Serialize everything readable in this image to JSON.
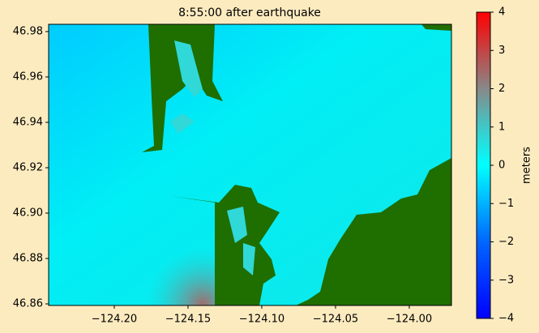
{
  "chart_data": {
    "type": "heatmap",
    "title": "8:55:00 after earthquake",
    "xlim": [
      -124.2445,
      -123.9714
    ],
    "ylim": [
      46.8593,
      46.9832
    ],
    "xticks": [
      {
        "value": -124.2,
        "label": "−124.20"
      },
      {
        "value": -124.15,
        "label": "−124.15"
      },
      {
        "value": -124.1,
        "label": "−124.10"
      },
      {
        "value": -124.05,
        "label": "−124.05"
      },
      {
        "value": -124.0,
        "label": "−124.00"
      }
    ],
    "yticks": [
      {
        "value": 46.86,
        "label": "46.86"
      },
      46.88,
      {
        "value": 46.9,
        "label": "46.90"
      },
      46.92,
      46.94,
      46.96,
      46.98
    ],
    "colorbar": {
      "label": "meters",
      "lim": [
        -4,
        4
      ],
      "ticks": [
        {
          "value": -4,
          "label": "−4"
        },
        {
          "value": -3,
          "label": "−3"
        },
        {
          "value": -2,
          "label": "−2"
        },
        {
          "value": -1,
          "label": "−1"
        },
        0,
        1,
        2,
        3,
        4
      ]
    }
  }
}
